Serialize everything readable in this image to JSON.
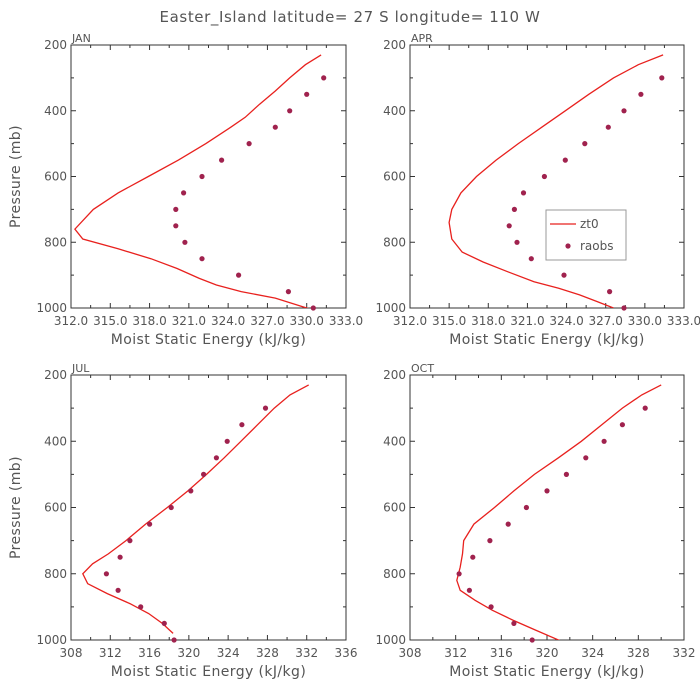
{
  "title": "Easter_Island  latitude= 27 S longitude= 110 W",
  "colors": {
    "model": "#e8211e",
    "obs": "#a0224e",
    "axes": "#333333",
    "text": "#555555"
  },
  "chart_data": [
    {
      "type": "line",
      "title": "JAN",
      "xlabel": "Moist Static Energy (kJ/kg)",
      "ylabel": "Pressure (mb)",
      "xlim": [
        312.0,
        333.0
      ],
      "ylim": [
        1000,
        200
      ],
      "y_reversed": true,
      "xtick_labels": [
        "312.0",
        "315.0",
        "318.0",
        "321.0",
        "324.0",
        "327.0",
        "330.0",
        "333.0"
      ],
      "ytick_labels": [
        "200",
        "400",
        "600",
        "800",
        "1000"
      ],
      "legend": null,
      "series": [
        {
          "name": "zt0",
          "style": "line",
          "x": [
            331.1,
            329.9,
            328.7,
            327.6,
            326.4,
            325.3,
            324.2,
            322.3,
            320.2,
            317.9,
            315.6,
            313.7,
            312.3,
            312.9,
            315.6,
            318.1,
            320.1,
            321.8,
            323.1,
            325.0,
            327.6,
            330.0,
            331.5
          ],
          "y": [
            230,
            260,
            300,
            340,
            380,
            420,
            450,
            500,
            550,
            600,
            650,
            700,
            760,
            790,
            820,
            850,
            880,
            910,
            930,
            950,
            970,
            1000,
            1020
          ]
        },
        {
          "name": "raobs",
          "style": "markers",
          "x": [
            331.3,
            330.0,
            328.7,
            327.6,
            325.6,
            323.5,
            322.0,
            320.6,
            320.0,
            320.0,
            320.7,
            322.0,
            324.8,
            328.6,
            330.5
          ],
          "y": [
            300,
            350,
            400,
            450,
            500,
            550,
            600,
            650,
            700,
            750,
            800,
            850,
            900,
            950,
            1000
          ]
        }
      ]
    },
    {
      "type": "line",
      "title": "APR",
      "xlabel": "Moist Static Energy (kJ/kg)",
      "ylabel": "",
      "xlim": [
        312.0,
        333.0
      ],
      "ylim": [
        1000,
        200
      ],
      "y_reversed": true,
      "xtick_labels": [
        "312.0",
        "315.0",
        "318.0",
        "321.0",
        "324.0",
        "327.0",
        "330.0",
        "333.0"
      ],
      "ytick_labels": [
        "200",
        "400",
        "600",
        "800",
        "1000"
      ],
      "legend": {
        "position": "right",
        "entries": [
          "zt0",
          "raobs"
        ]
      },
      "series": [
        {
          "name": "zt0",
          "style": "line",
          "x": [
            331.4,
            329.5,
            327.6,
            325.7,
            323.9,
            322.1,
            320.3,
            318.6,
            317.1,
            315.9,
            315.2,
            315.0,
            315.2,
            316.0,
            317.6,
            319.5,
            321.5,
            323.4,
            325.0,
            326.3,
            327.6
          ],
          "y": [
            230,
            260,
            300,
            350,
            400,
            450,
            500,
            550,
            600,
            650,
            700,
            740,
            790,
            830,
            860,
            890,
            920,
            940,
            960,
            980,
            1000
          ]
        },
        {
          "name": "raobs",
          "style": "markers",
          "x": [
            331.3,
            329.7,
            328.4,
            327.2,
            325.4,
            323.9,
            322.3,
            320.7,
            320.0,
            319.6,
            320.2,
            321.3,
            323.8,
            327.3,
            328.4
          ],
          "y": [
            300,
            350,
            400,
            450,
            500,
            550,
            600,
            650,
            700,
            750,
            800,
            850,
            900,
            950,
            1000
          ]
        }
      ]
    },
    {
      "type": "line",
      "title": "JUL",
      "xlabel": "Moist Static Energy (kJ/kg)",
      "ylabel": "Pressure (mb)",
      "xlim": [
        308,
        336
      ],
      "ylim": [
        1000,
        200
      ],
      "y_reversed": true,
      "xtick_labels": [
        "308",
        "312",
        "316",
        "320",
        "324",
        "328",
        "332",
        "336"
      ],
      "ytick_labels": [
        "200",
        "400",
        "600",
        "800",
        "1000"
      ],
      "legend": null,
      "series": [
        {
          "name": "zt0",
          "style": "line",
          "x": [
            332.2,
            330.3,
            328.7,
            327.0,
            325.3,
            323.6,
            321.8,
            319.9,
            317.8,
            315.6,
            313.6,
            311.8,
            310.2,
            309.2,
            309.7,
            311.7,
            314.0,
            315.9,
            317.3,
            318.4
          ],
          "y": [
            230,
            260,
            300,
            350,
            400,
            450,
            500,
            550,
            600,
            650,
            700,
            740,
            770,
            800,
            830,
            860,
            890,
            920,
            950,
            980
          ]
        },
        {
          "name": "raobs",
          "style": "markers",
          "x": [
            327.8,
            325.4,
            323.9,
            322.8,
            321.5,
            320.2,
            318.2,
            316.0,
            314.0,
            313.0,
            311.6,
            312.8,
            315.1,
            317.5,
            318.5
          ],
          "y": [
            300,
            350,
            400,
            450,
            500,
            550,
            600,
            650,
            700,
            750,
            800,
            850,
            900,
            950,
            1000
          ]
        }
      ]
    },
    {
      "type": "line",
      "title": "OCT",
      "xlabel": "Moist Static Energy (kJ/kg)",
      "ylabel": "",
      "xlim": [
        308,
        332
      ],
      "ylim": [
        1000,
        200
      ],
      "y_reversed": true,
      "xtick_labels": [
        "308",
        "312",
        "316",
        "320",
        "324",
        "328",
        "332"
      ],
      "ytick_labels": [
        "200",
        "400",
        "600",
        "800",
        "1000"
      ],
      "legend": null,
      "series": [
        {
          "name": "zt0",
          "style": "line",
          "x": [
            330.0,
            328.3,
            326.6,
            324.8,
            323.0,
            321.0,
            318.9,
            317.1,
            315.4,
            313.6,
            312.7,
            312.6,
            312.4,
            312.1,
            312.4,
            313.7,
            315.2,
            317.0,
            319.0,
            321.0,
            322.4
          ],
          "y": [
            230,
            260,
            300,
            350,
            400,
            450,
            500,
            550,
            600,
            650,
            700,
            740,
            780,
            820,
            850,
            880,
            910,
            940,
            970,
            1000,
            1020
          ]
        },
        {
          "name": "raobs",
          "style": "markers",
          "x": [
            328.6,
            326.6,
            325.0,
            323.4,
            321.7,
            320.0,
            318.2,
            316.6,
            315.0,
            313.5,
            312.3,
            313.2,
            315.1,
            317.1,
            318.7
          ],
          "y": [
            300,
            350,
            400,
            450,
            500,
            550,
            600,
            650,
            700,
            750,
            800,
            850,
            900,
            950,
            1000
          ]
        }
      ]
    }
  ]
}
